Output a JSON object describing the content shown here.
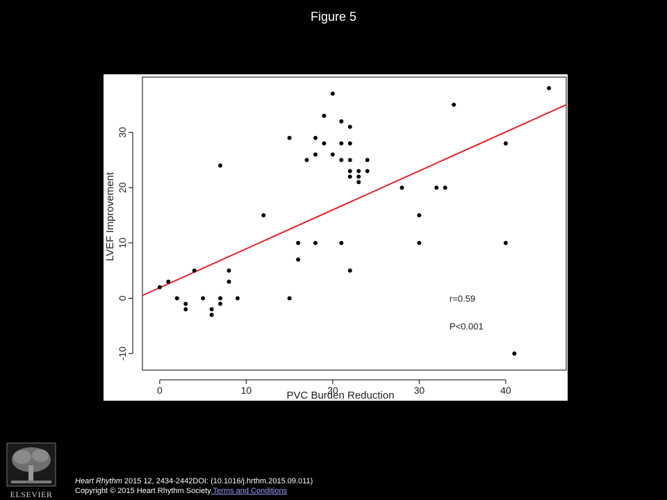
{
  "slide": {
    "title": "Figure 5"
  },
  "chart_data": {
    "type": "scatter",
    "title": "",
    "xlabel": "PVC Burden Reduction",
    "ylabel": "LVEF Improvement",
    "xlim": [
      -2,
      47
    ],
    "ylim": [
      -13,
      40
    ],
    "xticks": [
      0,
      10,
      20,
      30,
      40
    ],
    "yticks": [
      -10,
      0,
      10,
      20,
      30
    ],
    "grid": false,
    "points": [
      {
        "x": 0,
        "y": 2
      },
      {
        "x": 1,
        "y": 3
      },
      {
        "x": 2,
        "y": 0
      },
      {
        "x": 3,
        "y": -1
      },
      {
        "x": 3,
        "y": -2
      },
      {
        "x": 4,
        "y": 5
      },
      {
        "x": 5,
        "y": 0
      },
      {
        "x": 6,
        "y": -2
      },
      {
        "x": 6,
        "y": -3
      },
      {
        "x": 7,
        "y": 0
      },
      {
        "x": 7,
        "y": -1
      },
      {
        "x": 7,
        "y": 24
      },
      {
        "x": 8,
        "y": 5
      },
      {
        "x": 8,
        "y": 3
      },
      {
        "x": 9,
        "y": 0
      },
      {
        "x": 12,
        "y": 15
      },
      {
        "x": 15,
        "y": 29
      },
      {
        "x": 15,
        "y": 0
      },
      {
        "x": 16,
        "y": 10
      },
      {
        "x": 16,
        "y": 7
      },
      {
        "x": 17,
        "y": 25
      },
      {
        "x": 18,
        "y": 29
      },
      {
        "x": 18,
        "y": 26
      },
      {
        "x": 18,
        "y": 10
      },
      {
        "x": 19,
        "y": 33
      },
      {
        "x": 19,
        "y": 28
      },
      {
        "x": 20,
        "y": 37
      },
      {
        "x": 20,
        "y": 26
      },
      {
        "x": 21,
        "y": 32
      },
      {
        "x": 21,
        "y": 28
      },
      {
        "x": 21,
        "y": 25
      },
      {
        "x": 21,
        "y": 10
      },
      {
        "x": 22,
        "y": 31
      },
      {
        "x": 22,
        "y": 28
      },
      {
        "x": 22,
        "y": 25
      },
      {
        "x": 22,
        "y": 23
      },
      {
        "x": 22,
        "y": 22
      },
      {
        "x": 22,
        "y": 5
      },
      {
        "x": 23,
        "y": 23
      },
      {
        "x": 23,
        "y": 22
      },
      {
        "x": 23,
        "y": 21
      },
      {
        "x": 24,
        "y": 25
      },
      {
        "x": 24,
        "y": 23
      },
      {
        "x": 28,
        "y": 20
      },
      {
        "x": 30,
        "y": 15
      },
      {
        "x": 30,
        "y": 10
      },
      {
        "x": 32,
        "y": 20
      },
      {
        "x": 33,
        "y": 20
      },
      {
        "x": 34,
        "y": 35
      },
      {
        "x": 40,
        "y": 28
      },
      {
        "x": 40,
        "y": 10
      },
      {
        "x": 41,
        "y": -10
      },
      {
        "x": 45,
        "y": 38
      }
    ],
    "regression_line": {
      "color": "#e8202a",
      "x": [
        -2,
        47
      ],
      "y": [
        0.5,
        35
      ]
    },
    "annotations": [
      {
        "text": "r=0.59",
        "x": 33.5,
        "y": 0
      },
      {
        "text": "P<0.001",
        "x": 33.5,
        "y": -5
      }
    ],
    "point_color": "#000000"
  },
  "footer": {
    "journal": "Heart Rhythm",
    "citation_rest": " 2015 12, 2434-2442DOI: (10.1016/j.hrthm.2015.09.011)",
    "copyright": "Copyright © 2015 Heart Rhythm Society",
    "terms_link": " Terms and Conditions",
    "publisher_logo_icon": "elsevier-tree-logo"
  },
  "colors": {
    "background": "#000000",
    "plot_background": "#ffffff",
    "link": "#9a9cff"
  }
}
